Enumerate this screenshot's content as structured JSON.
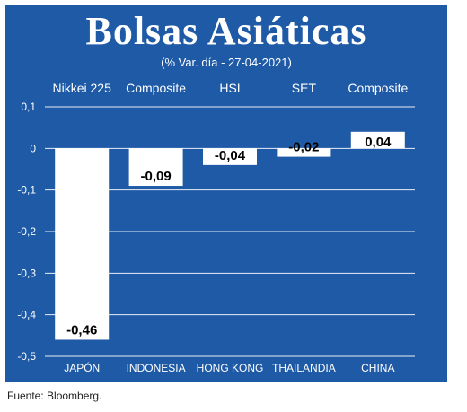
{
  "title": "Bolsas Asiáticas",
  "subtitle": "(% Var. día - 27-04-2021)",
  "source": "Fuente: Bloomberg.",
  "colors": {
    "background": "#1f5aa6",
    "bar": "#ffffff",
    "text": "#ffffff",
    "label_text": "#000000"
  },
  "chart_data": {
    "type": "bar",
    "categories": [
      "JAPÓN",
      "INDONESIA",
      "HONG KONG",
      "THAILANDIA",
      "CHINA"
    ],
    "index_names": [
      "Nikkei 225",
      "Composite",
      "HSI",
      "SET",
      "Composite"
    ],
    "values": [
      -0.46,
      -0.09,
      -0.04,
      -0.02,
      0.04
    ],
    "value_labels": [
      "-0,46",
      "-0,09",
      "-0,04",
      "-0,02",
      "0,04"
    ],
    "ylim": [
      -0.5,
      0.1
    ],
    "yticks": [
      0.1,
      0,
      -0.1,
      -0.2,
      -0.3,
      -0.4,
      -0.5
    ],
    "ytick_labels": [
      "0,1",
      "0",
      "-0,1",
      "-0,2",
      "-0,3",
      "-0,4",
      "-0,5"
    ],
    "grid": true,
    "xlabel": "",
    "ylabel": ""
  }
}
